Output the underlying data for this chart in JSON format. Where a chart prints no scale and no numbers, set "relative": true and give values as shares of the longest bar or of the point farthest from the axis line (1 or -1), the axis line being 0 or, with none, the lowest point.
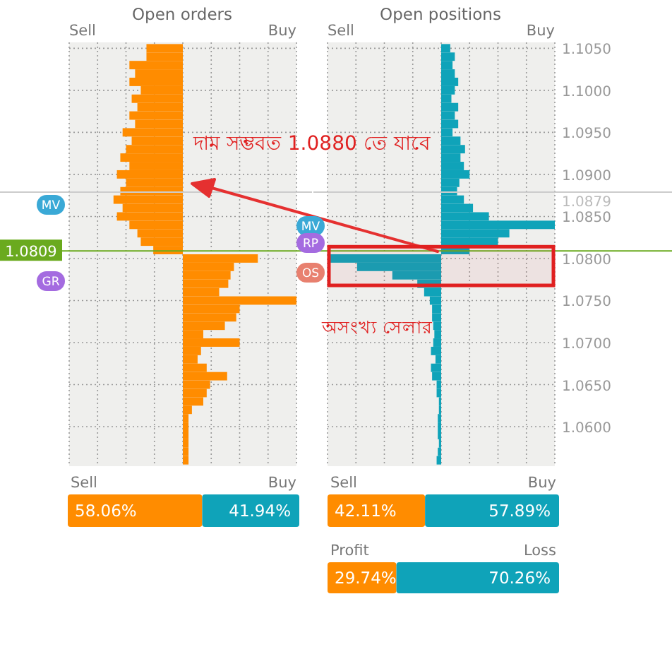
{
  "chart_data": [
    {
      "type": "bar",
      "orientation": "horizontal",
      "relative": true,
      "title": "Open orders",
      "xlabel": "Sell",
      "x2label": "Buy",
      "grid": true,
      "tick_labels": false,
      "ylim": [
        1.0553,
        1.1057
      ],
      "yticks": [
        1.105,
        1.1,
        1.095,
        1.09,
        1.085,
        1.08,
        1.075,
        1.07,
        1.065,
        1.06
      ],
      "x": [
        1.105,
        1.104,
        1.103,
        1.102,
        1.101,
        1.1,
        1.099,
        1.098,
        1.097,
        1.096,
        1.095,
        1.094,
        1.093,
        1.092,
        1.091,
        1.09,
        1.089,
        1.088,
        1.087,
        1.086,
        1.085,
        1.084,
        1.083,
        1.082,
        1.081,
        1.08,
        1.079,
        1.078,
        1.077,
        1.076,
        1.075,
        1.074,
        1.073,
        1.072,
        1.071,
        1.07,
        1.069,
        1.068,
        1.067,
        1.066,
        1.065,
        1.064,
        1.063,
        1.062,
        1.061,
        1.06,
        1.059,
        1.058,
        1.057,
        1.056
      ],
      "series": [
        {
          "color": "#ff8c00",
          "values": [
            -0.32,
            -0.32,
            -0.47,
            -0.42,
            -0.47,
            -0.37,
            -0.45,
            -0.4,
            -0.47,
            -0.42,
            -0.53,
            -0.45,
            -0.5,
            -0.55,
            -0.47,
            -0.58,
            -0.5,
            -0.55,
            -0.61,
            -0.53,
            -0.58,
            -0.47,
            -0.4,
            -0.37,
            -0.26,
            0.66,
            0.45,
            0.42,
            0.4,
            0.32,
            1,
            0.5,
            0.47,
            0.37,
            0.18,
            0.5,
            0.16,
            0.13,
            0.21,
            0.39,
            0.24,
            0.21,
            0.18,
            0.08,
            0.05,
            0.05,
            0.05,
            0.05,
            0.05,
            0.05
          ]
        }
      ],
      "ref_lines": [
        {
          "axis": "y",
          "value": 1.0809,
          "label": "1.0809",
          "color": "#6aaa1e"
        },
        {
          "axis": "y",
          "value": 1.0879,
          "color": "#cccccc"
        }
      ],
      "annotations": [
        "দাম সম্ভবত 1.0880 তে যাবে",
        "MV",
        "GR"
      ]
    },
    {
      "type": "bar",
      "orientation": "horizontal",
      "relative": true,
      "title": "Open positions",
      "xlabel": "Sell",
      "x2label": "Buy",
      "grid": true,
      "tick_labels": "y",
      "ylim": [
        1.0553,
        1.1057
      ],
      "yticks": [
        {
          "value": 1.105,
          "label": "1.1050"
        },
        {
          "value": 1.1,
          "label": "1.1000"
        },
        {
          "value": 1.095,
          "label": "1.0950"
        },
        {
          "value": 1.09,
          "label": "1.0900"
        },
        {
          "value": 1.085,
          "label": "1.0850"
        },
        {
          "value": 1.08,
          "label": "1.0800"
        },
        {
          "value": 1.075,
          "label": "1.0750"
        },
        {
          "value": 1.07,
          "label": "1.0700"
        },
        {
          "value": 1.065,
          "label": "1.0650"
        },
        {
          "value": 1.06,
          "label": "1.0600"
        }
      ],
      "x": [
        1.105,
        1.104,
        1.103,
        1.102,
        1.101,
        1.1,
        1.099,
        1.098,
        1.097,
        1.096,
        1.095,
        1.094,
        1.093,
        1.092,
        1.091,
        1.09,
        1.089,
        1.088,
        1.087,
        1.086,
        1.085,
        1.084,
        1.083,
        1.082,
        1.081,
        1.08,
        1.079,
        1.078,
        1.077,
        1.076,
        1.075,
        1.074,
        1.073,
        1.072,
        1.071,
        1.07,
        1.069,
        1.068,
        1.067,
        1.066,
        1.065,
        1.064,
        1.063,
        1.062,
        1.061,
        1.06,
        1.059,
        1.058,
        1.057,
        1.056
      ],
      "series": [
        {
          "color": "#0fa3b9",
          "values": [
            0.08,
            0.12,
            0.1,
            0.12,
            0.15,
            0.12,
            0.09,
            0.15,
            0.12,
            0.15,
            0.1,
            0.17,
            0.21,
            0.17,
            0.2,
            0.25,
            0.16,
            0.14,
            0.2,
            0.28,
            0.42,
            1,
            0.6,
            0.5,
            0.25,
            -0.98,
            -0.74,
            -0.43,
            -0.21,
            -0.15,
            -0.1,
            -0.08,
            -0.08,
            -0.07,
            -0.06,
            -0.07,
            -0.09,
            -0.05,
            -0.09,
            -0.08,
            -0.04,
            -0.04,
            -0.02,
            -0.02,
            -0.03,
            -0.03,
            -0.03,
            -0.02,
            -0.03,
            -0.04
          ]
        }
      ],
      "ref_lines": [
        {
          "axis": "y",
          "value": 1.0809,
          "color": "#6aaa1e"
        },
        {
          "axis": "y",
          "value": 1.0879,
          "label": "1.0879",
          "color": "#cccccc"
        }
      ],
      "bands": [
        {
          "axis": "y",
          "from": 1.0768,
          "to": 1.0814,
          "label": "অসংখ্য সেলার",
          "color": "#e02020"
        }
      ],
      "annotations": [
        "MV",
        "RP",
        "OS"
      ]
    },
    {
      "type": "bar",
      "orientation": "horizontal",
      "stacked": true,
      "categories": [
        null
      ],
      "series": [
        {
          "name": "Sell",
          "color": "#ff8c00",
          "values": [
            58.06
          ],
          "value_labels": [
            "58.06%"
          ]
        },
        {
          "name": "Buy",
          "color": "#0fa3b9",
          "values": [
            41.94
          ],
          "value_labels": [
            "41.94%"
          ]
        }
      ]
    },
    {
      "type": "bar",
      "orientation": "horizontal",
      "stacked": true,
      "categories": [
        null
      ],
      "series": [
        {
          "name": "Sell",
          "color": "#ff8c00",
          "values": [
            42.11
          ],
          "value_labels": [
            "42.11%"
          ]
        },
        {
          "name": "Buy",
          "color": "#0fa3b9",
          "values": [
            57.89
          ],
          "value_labels": [
            "57.89%"
          ]
        }
      ]
    },
    {
      "type": "bar",
      "orientation": "horizontal",
      "stacked": true,
      "categories": [
        null
      ],
      "series": [
        {
          "name": "Profit",
          "color": "#ff8c00",
          "values": [
            29.74
          ],
          "value_labels": [
            "29.74%"
          ]
        },
        {
          "name": "Loss",
          "color": "#0fa3b9",
          "values": [
            70.26
          ],
          "value_labels": [
            "70.26%"
          ]
        }
      ]
    }
  ]
}
